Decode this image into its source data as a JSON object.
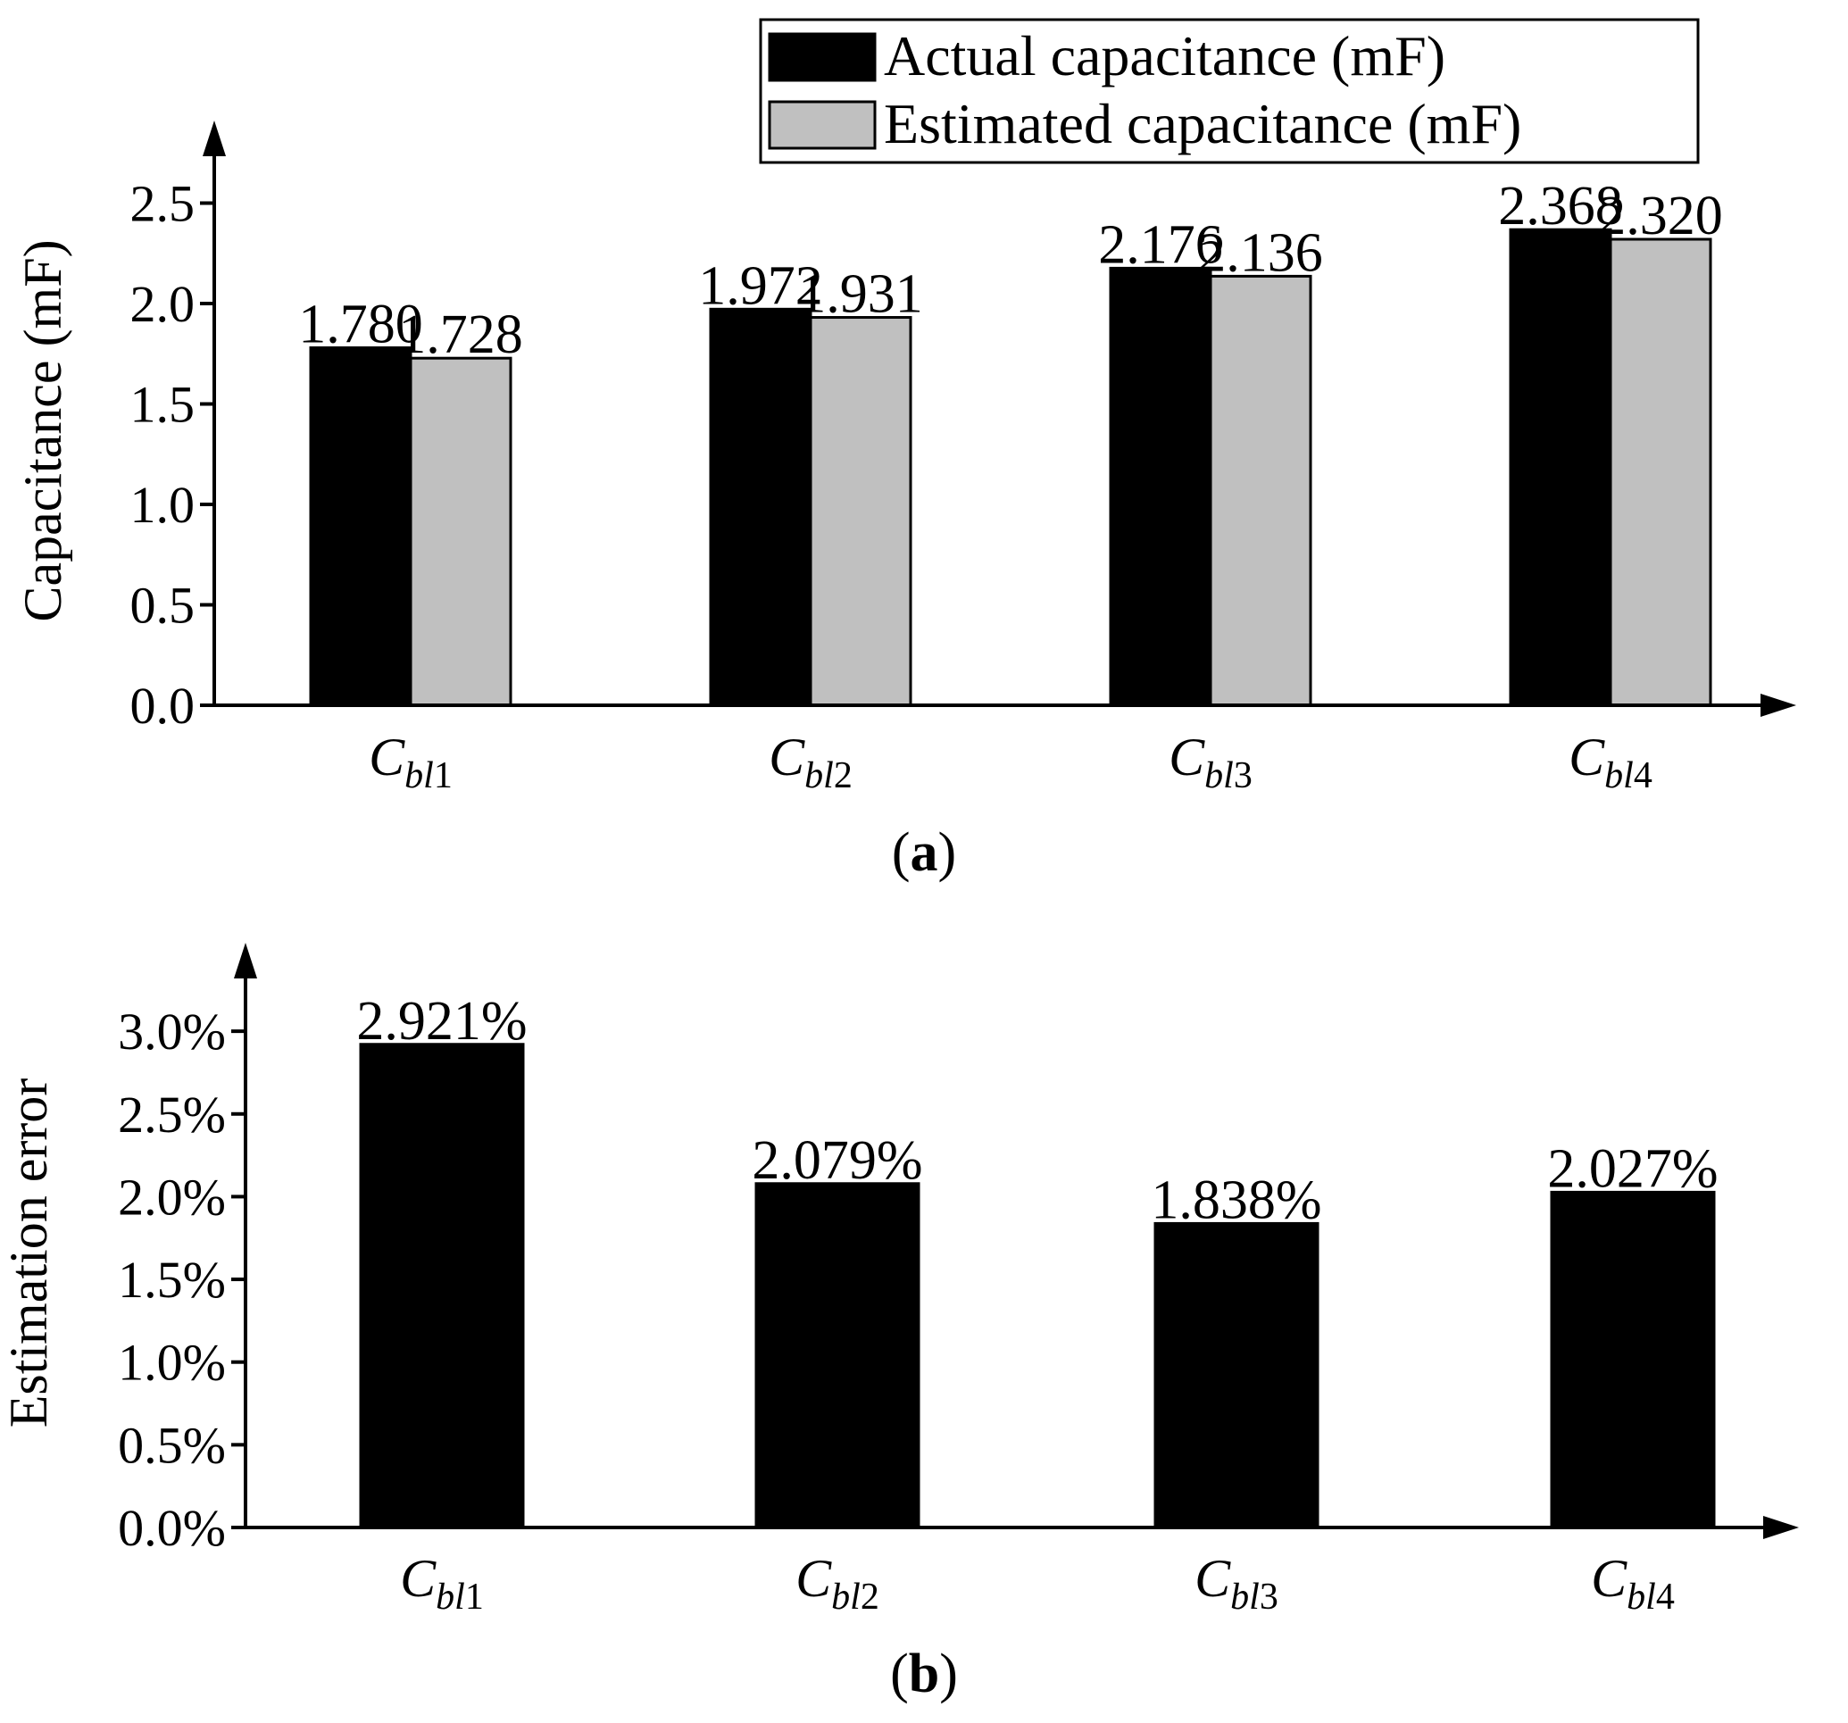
{
  "chart_data": [
    {
      "panel": "a",
      "type": "bar",
      "panel_label": "a",
      "ylabel": "Capacitance (mF)",
      "xlabel": "",
      "ylim": [
        0,
        2.8
      ],
      "yticks": [
        0.0,
        0.5,
        1.0,
        1.5,
        2.0,
        2.5
      ],
      "ytick_labels": [
        "0.0",
        "0.5",
        "1.0",
        "1.5",
        "2.0",
        "2.5"
      ],
      "categories": [
        {
          "base": "C",
          "sub_italic": "bl",
          "sub_num": "1"
        },
        {
          "base": "C",
          "sub_italic": "bl",
          "sub_num": "2"
        },
        {
          "base": "C",
          "sub_italic": "bl",
          "sub_num": "3"
        },
        {
          "base": "C",
          "sub_italic": "bl",
          "sub_num": "4"
        }
      ],
      "series": [
        {
          "name": "Actual capacitance (mF)",
          "color": "#000000",
          "values": [
            1.78,
            1.972,
            2.176,
            2.368
          ],
          "labels": [
            "1.780",
            "1.972",
            "2.176",
            "2.368"
          ]
        },
        {
          "name": "Estimated capacitance (mF)",
          "color": "#c0c0c0",
          "values": [
            1.728,
            1.931,
            2.136,
            2.32
          ],
          "labels": [
            "1.728",
            "1.931",
            "2.136",
            "2.320"
          ]
        }
      ],
      "legend_position": "top-right"
    },
    {
      "panel": "b",
      "type": "bar",
      "panel_label": "b",
      "ylabel": "Estimation error",
      "xlabel": "",
      "ylim": [
        0,
        3.4
      ],
      "yticks": [
        0.0,
        0.5,
        1.0,
        1.5,
        2.0,
        2.5,
        3.0
      ],
      "ytick_labels": [
        "0.0%",
        "0.5%",
        "1.0%",
        "1.5%",
        "2.0%",
        "2.5%",
        "3.0%"
      ],
      "categories": [
        {
          "base": "C",
          "sub_italic": "bl",
          "sub_num": "1"
        },
        {
          "base": "C",
          "sub_italic": "bl",
          "sub_num": "2"
        },
        {
          "base": "C",
          "sub_italic": "bl",
          "sub_num": "3"
        },
        {
          "base": "C",
          "sub_italic": "bl",
          "sub_num": "4"
        }
      ],
      "series": [
        {
          "name": "Estimation error",
          "color": "#000000",
          "values": [
            2.921,
            2.079,
            1.838,
            2.027
          ],
          "labels": [
            "2.921%",
            "2.079%",
            "1.838%",
            "2.027%"
          ]
        }
      ]
    }
  ]
}
